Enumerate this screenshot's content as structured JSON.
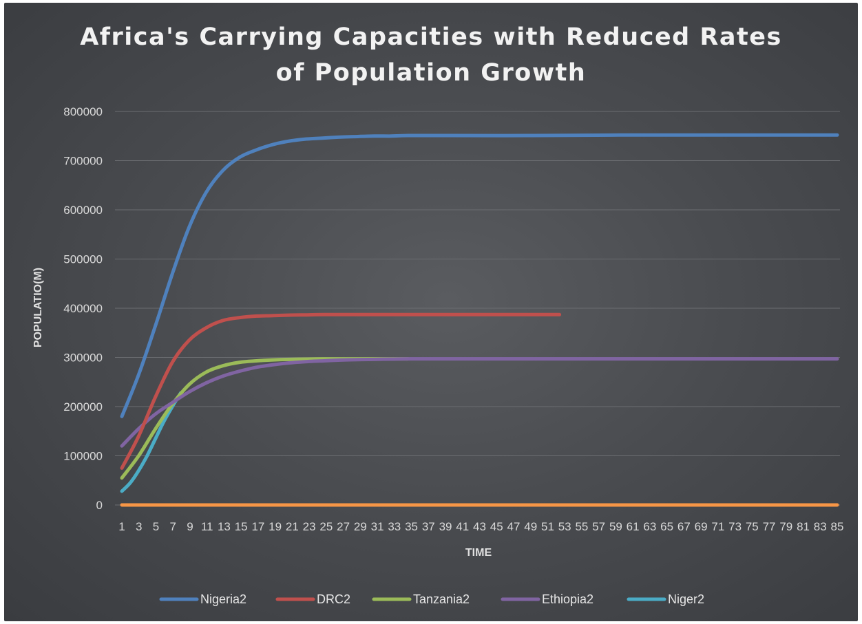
{
  "chart_data": {
    "type": "line",
    "title": "Africa's Carrying Capacities with Reduced Rates\nof Population Growth",
    "xlabel": "TIME",
    "ylabel": "POPULATIO(M)",
    "ylim": [
      0,
      800000
    ],
    "y_ticks": [
      "0",
      "100000",
      "200000",
      "300000",
      "400000",
      "500000",
      "600000",
      "700000",
      "800000"
    ],
    "x_tick_labels": [
      "1",
      "3",
      "5",
      "7",
      "9",
      "11",
      "13",
      "15",
      "17",
      "19",
      "21",
      "23",
      "25",
      "27",
      "29",
      "31",
      "33",
      "35",
      "37",
      "39",
      "41",
      "43",
      "45",
      "47",
      "49",
      "51",
      "53",
      "55",
      "57",
      "59",
      "61",
      "63",
      "65",
      "67",
      "69",
      "71",
      "73",
      "75",
      "77",
      "79",
      "81",
      "83",
      "85"
    ],
    "x_range": [
      1,
      86
    ],
    "grid": true,
    "legend_position": "bottom",
    "series": [
      {
        "name": "Nigeria2",
        "color": "#4f81bd",
        "x": [
          1,
          3,
          5,
          7,
          9,
          11,
          13,
          15,
          17,
          19,
          21,
          23,
          25,
          27,
          29,
          31,
          33,
          35,
          40,
          50,
          60,
          70,
          80,
          86
        ],
        "values": [
          180000,
          265000,
          365000,
          470000,
          565000,
          635000,
          680000,
          707000,
          722000,
          733000,
          740000,
          744000,
          746000,
          748000,
          749000,
          750000,
          750000,
          751000,
          751000,
          751000,
          752000,
          752000,
          752000,
          752000
        ]
      },
      {
        "name": "DRC2",
        "color": "#c0504d",
        "x": [
          1,
          3,
          5,
          7,
          9,
          11,
          13,
          15,
          17,
          19,
          21,
          23,
          25,
          30,
          35,
          40,
          45,
          50,
          53
        ],
        "values": [
          75000,
          140000,
          220000,
          290000,
          335000,
          360000,
          375000,
          381000,
          384000,
          385000,
          386000,
          386500,
          387000,
          387000,
          387000,
          387000,
          387000,
          387000,
          387000
        ]
      },
      {
        "name": "Tanzania2",
        "color": "#9bbb59",
        "x": [
          1,
          3,
          5,
          7,
          9,
          11,
          13,
          15,
          17,
          19,
          21,
          23,
          25,
          27,
          29,
          31,
          33,
          35
        ],
        "values": [
          55000,
          100000,
          155000,
          205000,
          245000,
          270000,
          283000,
          290000,
          293000,
          295000,
          296000,
          296500,
          297000,
          297000,
          297000,
          297000,
          297000,
          297000
        ]
      },
      {
        "name": "Ethiopia2",
        "color": "#8064a2",
        "x": [
          1,
          3,
          5,
          7,
          9,
          11,
          13,
          15,
          17,
          19,
          21,
          23,
          25,
          27,
          29,
          31,
          33,
          35,
          40,
          50,
          60,
          70,
          80,
          86
        ],
        "values": [
          120000,
          155000,
          185000,
          208000,
          230000,
          248000,
          262000,
          272000,
          280000,
          285000,
          289000,
          291500,
          293000,
          294500,
          295500,
          296000,
          296500,
          297000,
          297000,
          297000,
          297000,
          297000,
          297000,
          297000
        ]
      },
      {
        "name": "Niger2",
        "color": "#4bacc6",
        "x": [
          1,
          2,
          3,
          4,
          5,
          6,
          7,
          8
        ],
        "values": [
          28000,
          45000,
          70000,
          100000,
          135000,
          170000,
          200000,
          228000
        ]
      },
      {
        "name": "",
        "color": "#f79646",
        "x": [
          1,
          86
        ],
        "values": [
          0,
          0
        ]
      }
    ]
  }
}
